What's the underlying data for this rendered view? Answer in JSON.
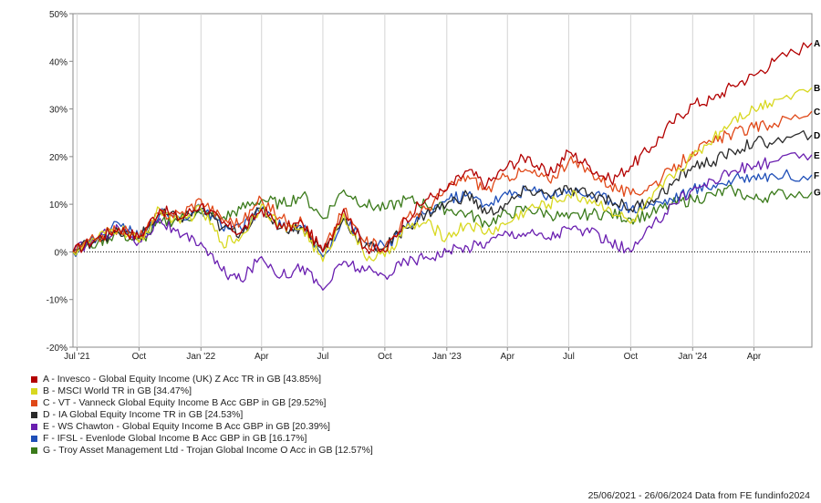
{
  "chart_data": {
    "type": "line",
    "y_unit": "%",
    "ylim": [
      -20,
      50
    ],
    "y_ticks": [
      "50%",
      "40%",
      "30%",
      "20%",
      "10%",
      "0%",
      "-10%",
      "-20%"
    ],
    "y_tick_values": [
      50,
      40,
      30,
      20,
      10,
      0,
      -10,
      -20
    ],
    "x_range": [
      "2021-06-25",
      "2024-06-26"
    ],
    "x_ticks": [
      {
        "label": "Jul '21",
        "date": "2021-07-01"
      },
      {
        "label": "Oct",
        "date": "2021-10-01"
      },
      {
        "label": "Jan '22",
        "date": "2022-01-01"
      },
      {
        "label": "Apr",
        "date": "2022-04-01"
      },
      {
        "label": "Jul",
        "date": "2022-07-01"
      },
      {
        "label": "Oct",
        "date": "2022-10-01"
      },
      {
        "label": "Jan '23",
        "date": "2023-01-01"
      },
      {
        "label": "Apr",
        "date": "2023-04-01"
      },
      {
        "label": "Jul",
        "date": "2023-07-01"
      },
      {
        "label": "Oct",
        "date": "2023-10-01"
      },
      {
        "label": "Jan '24",
        "date": "2024-01-01"
      },
      {
        "label": "Apr",
        "date": "2024-04-01"
      }
    ],
    "grid": "vertical lines at x ticks",
    "zero_line": "dotted",
    "legend_position": "below chart",
    "x": [
      "2021-06-25",
      "2021-08-01",
      "2021-09-01",
      "2021-10-01",
      "2021-11-01",
      "2021-12-01",
      "2022-01-01",
      "2022-02-01",
      "2022-03-01",
      "2022-04-01",
      "2022-05-01",
      "2022-06-01",
      "2022-07-01",
      "2022-08-01",
      "2022-09-01",
      "2022-10-01",
      "2022-11-01",
      "2022-12-01",
      "2023-01-01",
      "2023-02-01",
      "2023-03-01",
      "2023-04-01",
      "2023-05-01",
      "2023-06-01",
      "2023-07-01",
      "2023-08-01",
      "2023-09-01",
      "2023-10-01",
      "2023-11-01",
      "2023-12-01",
      "2024-01-01",
      "2024-02-01",
      "2024-03-01",
      "2024-04-01",
      "2024-05-01",
      "2024-06-26"
    ],
    "series": [
      {
        "name": "A - Invesco - Global Equity Income (UK) Z Acc TR in GB [43.85%]",
        "end_label": "A",
        "color": "#b30000",
        "values": [
          0,
          3,
          5,
          3,
          9,
          7,
          10,
          6,
          4,
          9,
          5,
          6,
          0,
          9,
          1,
          0,
          7,
          11,
          13,
          17,
          14,
          18,
          20,
          16,
          21,
          18,
          15,
          18,
          22,
          27,
          31,
          32,
          35,
          37,
          40,
          43.85
        ]
      },
      {
        "name": "B - MSCI World TR in GB [34.47%]",
        "end_label": "B",
        "color": "#d8d820",
        "values": [
          0,
          3,
          5,
          2,
          9,
          6,
          9,
          2,
          3,
          10,
          5,
          5,
          -2,
          8,
          -1,
          -1,
          5,
          6,
          3,
          6,
          4,
          6,
          9,
          10,
          12,
          11,
          9,
          6,
          11,
          16,
          20,
          24,
          28,
          30,
          32,
          34.47
        ]
      },
      {
        "name": "C - VT - Vanneck Global Equity Income B Acc GBP in GB [29.52%]",
        "end_label": "C",
        "color": "#e04818",
        "values": [
          0,
          3,
          5,
          3,
          8,
          8,
          11,
          7,
          6,
          11,
          7,
          6,
          0,
          9,
          2,
          1,
          7,
          9,
          13,
          16,
          13,
          16,
          17,
          15,
          19,
          17,
          14,
          12,
          14,
          17,
          21,
          23,
          25,
          26,
          27,
          29.52
        ]
      },
      {
        "name": "D - IA Global Equity Income TR in GB [24.53%]",
        "end_label": "D",
        "color": "#2a2a2a",
        "values": [
          0,
          3,
          4,
          3,
          8,
          7,
          9,
          5,
          4,
          9,
          5,
          5,
          0,
          7,
          1,
          1,
          5,
          8,
          10,
          12,
          8,
          10,
          13,
          12,
          13,
          12,
          11,
          9,
          11,
          14,
          18,
          19,
          21,
          23,
          23,
          24.53
        ]
      },
      {
        "name": "E - WS Chawton - Global Equity Income B Acc GBP in GB [20.39%]",
        "end_label": "E",
        "color": "#6a1fb0",
        "values": [
          0,
          3,
          5,
          2,
          7,
          3,
          2,
          -4,
          -6,
          -1,
          -5,
          -3,
          -8,
          -2,
          -4,
          -5,
          -2,
          -1,
          0,
          1,
          2,
          4,
          4,
          3,
          5,
          4,
          2,
          0,
          5,
          10,
          13,
          15,
          17,
          18,
          19,
          20.39
        ]
      },
      {
        "name": "F - IFSL - Evenlode Global Income B Acc GBP in GB [16.17%]",
        "end_label": "F",
        "color": "#1f4fb8",
        "values": [
          0,
          3,
          6,
          3,
          8,
          7,
          9,
          5,
          5,
          9,
          5,
          5,
          -1,
          7,
          2,
          1,
          5,
          8,
          11,
          12,
          10,
          12,
          13,
          12,
          13,
          12,
          11,
          9,
          10,
          11,
          13,
          14,
          15,
          16,
          16,
          16.17
        ]
      },
      {
        "name": "G - Troy Asset Management Ltd - Trojan Global Income O Acc in GB [12.57%]",
        "end_label": "G",
        "color": "#3a7a1a",
        "values": [
          0,
          2,
          4,
          2,
          6,
          7,
          8,
          7,
          9,
          11,
          10,
          12,
          7,
          13,
          10,
          9,
          11,
          10,
          9,
          8,
          6,
          8,
          9,
          8,
          7,
          8,
          8,
          7,
          8,
          10,
          11,
          12,
          13,
          11,
          12,
          12.57
        ]
      }
    ]
  },
  "footer_text": "25/06/2021 - 26/06/2024 Data from FE fundinfo2024"
}
